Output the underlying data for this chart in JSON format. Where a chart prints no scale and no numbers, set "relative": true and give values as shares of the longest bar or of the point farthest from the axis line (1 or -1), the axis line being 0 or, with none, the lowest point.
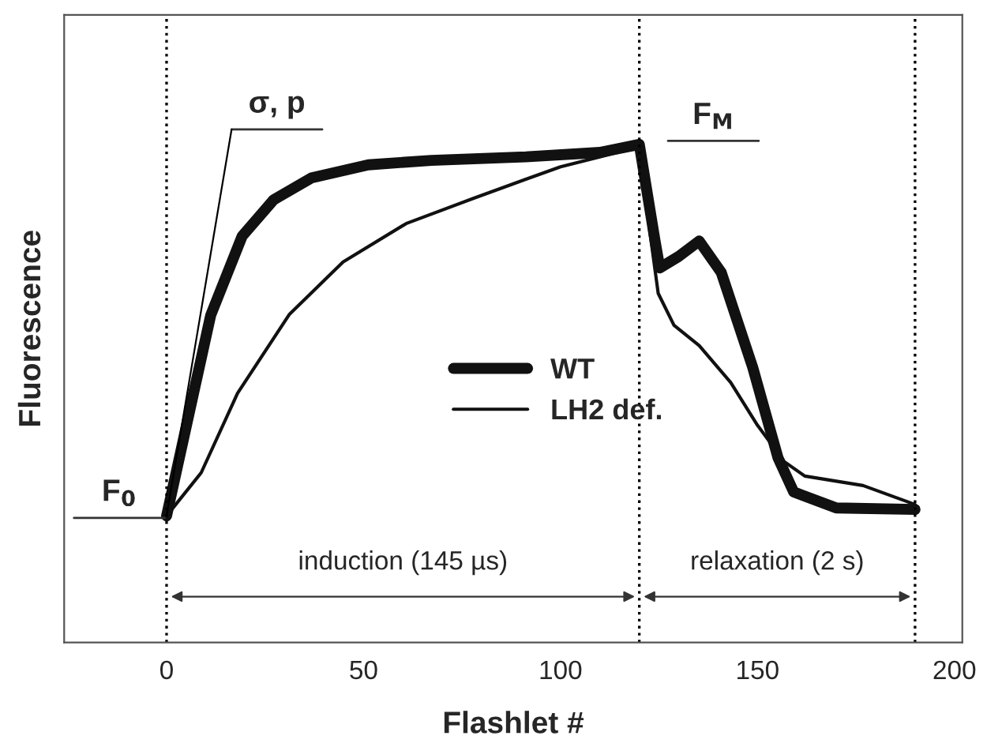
{
  "chart_data": {
    "type": "line",
    "xlabel": "Flashlet #",
    "ylabel": "Fluorescence",
    "relative": true,
    "xlim": [
      -26,
      202
    ],
    "xticks": [
      0,
      50,
      100,
      150,
      200
    ],
    "legend": "center",
    "grid": false,
    "series": [
      {
        "name": "WT",
        "color": "#111111",
        "x": [
          0,
          11.2,
          19.2,
          27.2,
          36.8,
          51.2,
          67.2,
          91.2,
          110,
          120,
          124,
          125.2,
          130,
          135.2,
          140.8,
          148.8,
          155.2,
          159.2,
          170,
          190
        ],
        "values": [
          0.254,
          0.657,
          0.816,
          0.889,
          0.933,
          0.959,
          0.968,
          0.975,
          0.984,
          1.0,
          0.806,
          0.752,
          0.775,
          0.806,
          0.743,
          0.552,
          0.371,
          0.302,
          0.27,
          0.267
        ]
      },
      {
        "name": "LH2 def.",
        "color": "#111111",
        "x": [
          0,
          8.8,
          18,
          31.2,
          44.8,
          60.8,
          78,
          91.2,
          100,
          115,
          120,
          122.8,
          124.8,
          128.8,
          135.2,
          143.2,
          150,
          156.8,
          162,
          176.8,
          190
        ],
        "values": [
          0.254,
          0.341,
          0.5,
          0.659,
          0.764,
          0.841,
          0.892,
          0.93,
          0.955,
          0.985,
          0.995,
          0.818,
          0.701,
          0.637,
          0.596,
          0.522,
          0.436,
          0.363,
          0.334,
          0.315,
          0.277
        ]
      }
    ],
    "ref_lines": [
      {
        "axis": "x",
        "value": 0,
        "line_style": "dotted"
      },
      {
        "axis": "x",
        "value": 120,
        "line_style": "dotted"
      },
      {
        "axis": "x",
        "value": 190,
        "line_style": "dotted"
      }
    ],
    "annotations": [
      "F$_{0}$",
      "F$_{M}$",
      "σ, p",
      "induction (145 µs)",
      "relaxation (2 s)"
    ]
  }
}
